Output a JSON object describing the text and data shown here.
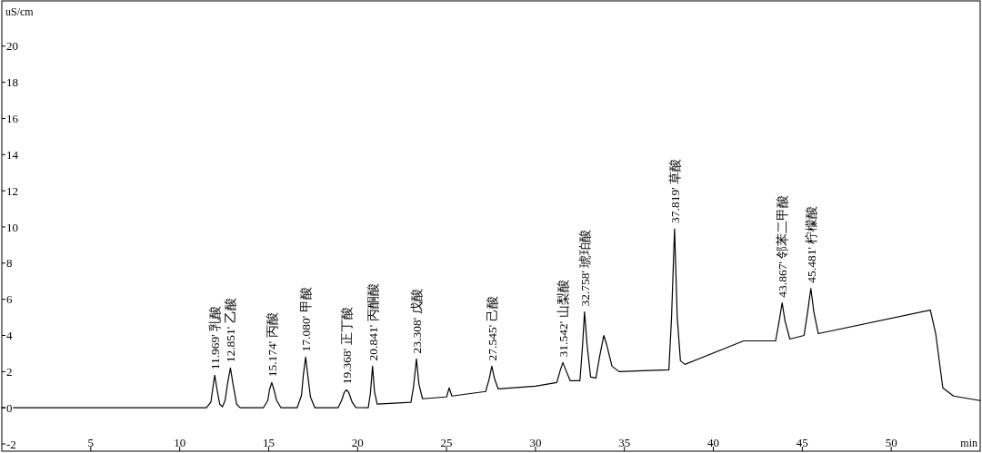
{
  "chart_data": {
    "type": "line",
    "xlabel": "min",
    "ylabel": "uS/cm",
    "xlim": [
      0,
      55
    ],
    "ylim": [
      -2.4,
      22.5
    ],
    "xticks": [
      5,
      10,
      15,
      20,
      25,
      30,
      35,
      40,
      45,
      50
    ],
    "yticks": [
      -2,
      0,
      2,
      4,
      6,
      8,
      10,
      12,
      14,
      16,
      18,
      20
    ],
    "marker": "none",
    "line_style": "solid",
    "series": [
      {
        "color": "#000000",
        "x": [
          0,
          11.5,
          11.75,
          11.85,
          11.969,
          12.1,
          12.25,
          12.4,
          12.55,
          12.7,
          12.851,
          13.0,
          13.2,
          13.4,
          14.7,
          14.95,
          15.05,
          15.174,
          15.3,
          15.45,
          15.7,
          16.6,
          16.85,
          16.95,
          17.08,
          17.2,
          17.35,
          17.6,
          18.9,
          19.1,
          19.25,
          19.368,
          19.5,
          19.7,
          19.9,
          20.6,
          20.72,
          20.841,
          20.95,
          21.1,
          23.0,
          23.15,
          23.308,
          23.45,
          23.65,
          25.0,
          25.15,
          25.3,
          27.2,
          27.4,
          27.545,
          27.7,
          27.9,
          30,
          31.2,
          31.4,
          31.542,
          31.7,
          31.95,
          32.5,
          32.65,
          32.758,
          32.9,
          33.1,
          33.4,
          33.6,
          33.84,
          34.0,
          34.3,
          34.7,
          36.0,
          37.5,
          37.65,
          37.819,
          37.97,
          38.15,
          38.4,
          41.7,
          43.5,
          43.7,
          43.867,
          44.03,
          44.3,
          45.1,
          45.3,
          45.481,
          45.65,
          45.9,
          52.2,
          52.5,
          52.9,
          53.5,
          55
        ],
        "values": [
          0,
          0,
          0.3,
          1.0,
          1.8,
          1.0,
          0.2,
          0.05,
          0.4,
          1.4,
          2.2,
          1.3,
          0.2,
          0,
          0,
          0.4,
          1.0,
          1.4,
          1.0,
          0.4,
          0,
          0,
          0.7,
          1.8,
          2.8,
          1.8,
          0.6,
          0,
          0,
          0.4,
          0.85,
          1.0,
          0.85,
          0.3,
          0.02,
          0,
          0.8,
          2.3,
          0.9,
          0.2,
          0.3,
          1.2,
          2.7,
          1.3,
          0.5,
          0.6,
          1.1,
          0.65,
          0.9,
          1.6,
          2.3,
          1.6,
          1.05,
          1.2,
          1.4,
          2.1,
          2.5,
          2.1,
          1.5,
          1.5,
          3.5,
          5.3,
          3.5,
          1.7,
          1.65,
          2.8,
          4.0,
          3.5,
          2.3,
          2.0,
          2.05,
          2.1,
          5.0,
          9.9,
          5.0,
          2.6,
          2.4,
          3.7,
          3.7,
          4.8,
          5.8,
          4.8,
          3.8,
          4.0,
          5.3,
          6.6,
          5.3,
          4.1,
          5.4,
          4.1,
          1.1,
          0.65,
          0.4
        ]
      }
    ],
    "annotations": [
      {
        "text": "11.969'  乳酸",
        "x": 11.969,
        "y": 1.8
      },
      {
        "text": "12.851'  乙酸",
        "x": 12.851,
        "y": 2.2
      },
      {
        "text": "15.174'  丙酸",
        "x": 15.174,
        "y": 1.4
      },
      {
        "text": "17.080'  甲酸",
        "x": 17.08,
        "y": 2.8
      },
      {
        "text": "19.368'  正丁酸",
        "x": 19.368,
        "y": 1.0
      },
      {
        "text": "20.841'  丙酮酸",
        "x": 20.841,
        "y": 2.3
      },
      {
        "text": "23.308'  戊酸",
        "x": 23.308,
        "y": 2.7
      },
      {
        "text": "27.545'  己酸",
        "x": 27.545,
        "y": 2.3
      },
      {
        "text": "31.542'  山梨酸",
        "x": 31.542,
        "y": 2.5
      },
      {
        "text": "32.758'  琥珀酸",
        "x": 32.758,
        "y": 5.3
      },
      {
        "text": "37.819'  草酸",
        "x": 37.819,
        "y": 9.9
      },
      {
        "text": "43.867'  邻苯二甲酸",
        "x": 43.867,
        "y": 5.8
      },
      {
        "text": "45.481'  柠檬酸",
        "x": 45.481,
        "y": 6.6
      }
    ]
  }
}
